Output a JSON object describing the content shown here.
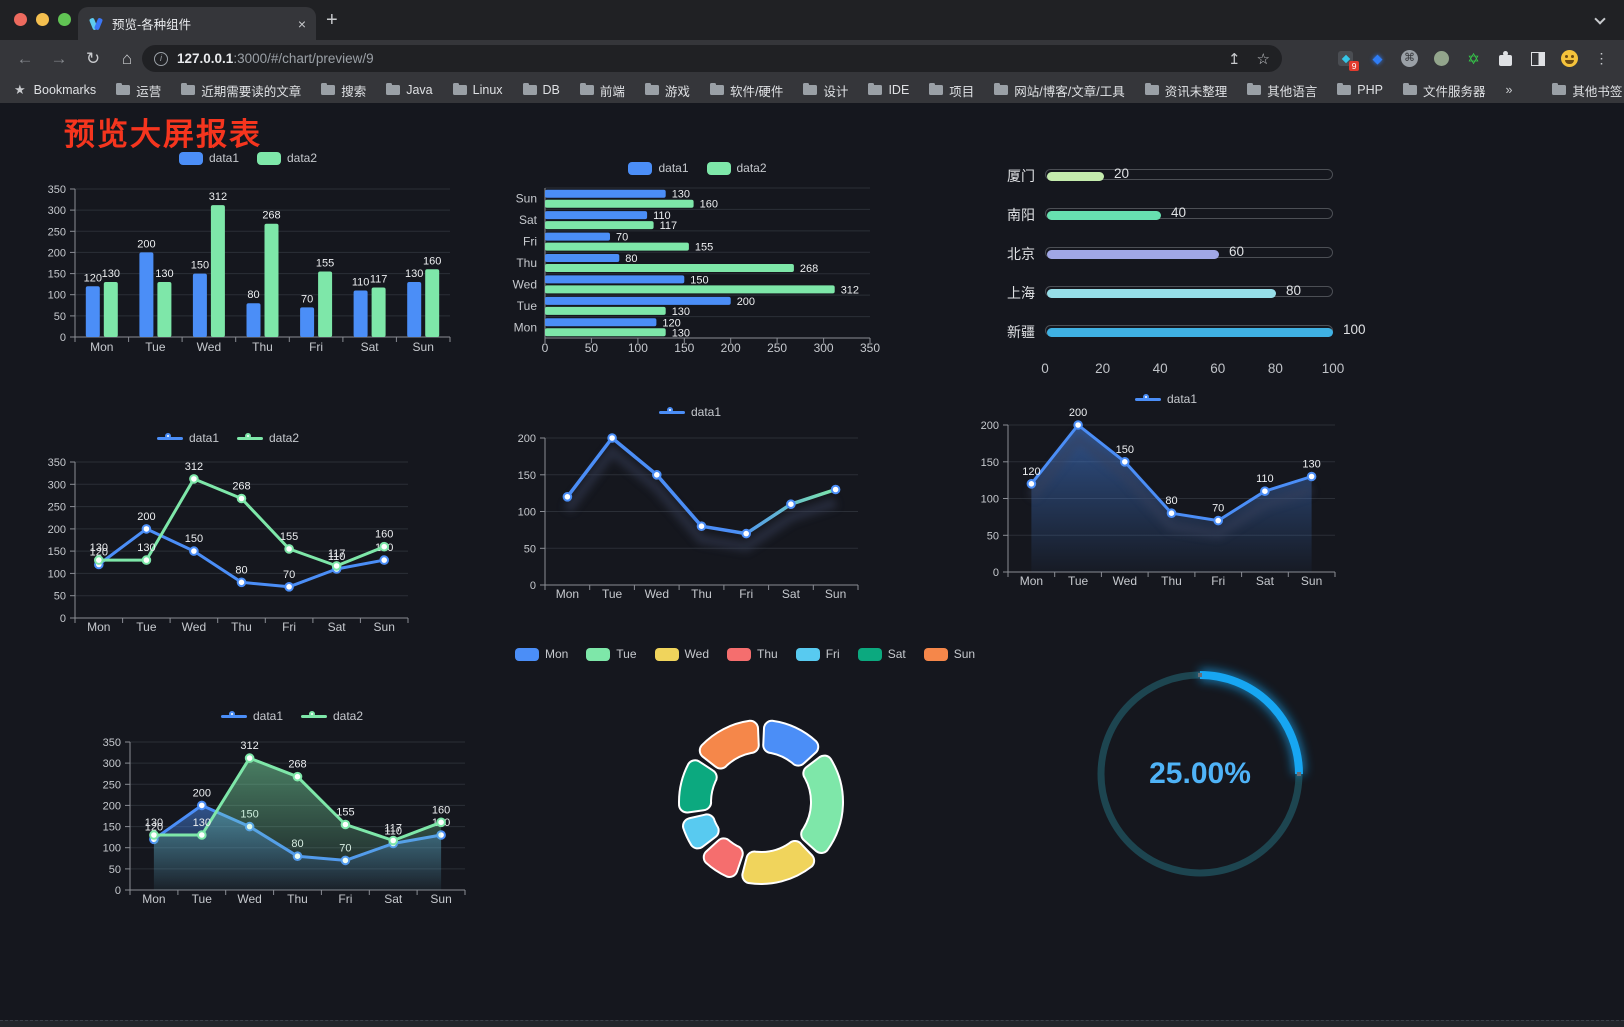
{
  "browser": {
    "tab_title": "预览-各种组件",
    "url_host": "127.0.0.1",
    "url_rest": ":3000/#/chart/preview/9",
    "ext_badge": "9",
    "bookmarks_caption": "Bookmarks",
    "bookmarks": [
      "运营",
      "近期需要读的文章",
      "搜索",
      "Java",
      "Linux",
      "DB",
      "前端",
      "游戏",
      "软件/硬件",
      "设计",
      "IDE",
      "项目",
      "网站/博客/文章/工具",
      "资讯未整理",
      "其他语言",
      "PHP",
      "文件服务器"
    ],
    "bookmarks_overflow": "»",
    "other_bookmarks": "其他书签"
  },
  "icons": {
    "close": "×",
    "new_tab": "+",
    "back": "←",
    "forward": "→",
    "reload": "↻",
    "home": "⌂",
    "info": "i",
    "share": "↥",
    "url_star": "☆",
    "bookmark_star": "★",
    "kebab": "⋮",
    "cmd": "⌘",
    "hex_star": "✡"
  },
  "page": {
    "title": "预览大屏报表"
  },
  "chart_data": [
    {
      "id": "grouped-bar",
      "type": "bar",
      "categories": [
        "Mon",
        "Tue",
        "Wed",
        "Thu",
        "Fri",
        "Sat",
        "Sun"
      ],
      "series": [
        {
          "name": "data1",
          "color": "#4b8ef7",
          "values": [
            120,
            200,
            150,
            80,
            70,
            110,
            130
          ]
        },
        {
          "name": "data2",
          "color": "#7ee7a9",
          "values": [
            130,
            130,
            312,
            268,
            155,
            117,
            160
          ]
        }
      ],
      "ylim": [
        0,
        350
      ],
      "ytick_step": 50,
      "value_labels": true,
      "legend": "rect"
    },
    {
      "id": "horizontal-bar",
      "type": "barh",
      "categories": [
        "Mon",
        "Tue",
        "Wed",
        "Thu",
        "Fri",
        "Sat",
        "Sun"
      ],
      "series": [
        {
          "name": "data1",
          "color": "#4b8ef7",
          "values": [
            120,
            200,
            150,
            80,
            70,
            110,
            130
          ]
        },
        {
          "name": "data2",
          "color": "#7ee7a9",
          "values": [
            130,
            130,
            312,
            268,
            155,
            117,
            160
          ]
        }
      ],
      "xlim": [
        0,
        350
      ],
      "xtick_step": 50,
      "value_labels": true,
      "legend": "rect"
    },
    {
      "id": "progress-bars",
      "type": "progress",
      "items": [
        {
          "label": "厦门",
          "value": 20,
          "color": "#c4ebad"
        },
        {
          "label": "南阳",
          "value": 40,
          "color": "#67e0b0"
        },
        {
          "label": "北京",
          "value": 60,
          "color": "#a0a7e6"
        },
        {
          "label": "上海",
          "value": 80,
          "color": "#96dee8"
        },
        {
          "label": "新疆",
          "value": 100,
          "color": "#3fb1e3"
        }
      ],
      "xlim": [
        0,
        100
      ],
      "xticks": [
        0,
        20,
        40,
        60,
        80,
        100
      ]
    },
    {
      "id": "line-two-series",
      "type": "line",
      "categories": [
        "Mon",
        "Tue",
        "Wed",
        "Thu",
        "Fri",
        "Sat",
        "Sun"
      ],
      "series": [
        {
          "name": "data1",
          "color": "#4b8ef7",
          "values": [
            120,
            200,
            150,
            80,
            70,
            110,
            130
          ]
        },
        {
          "name": "data2",
          "color": "#7ee7a9",
          "values": [
            130,
            130,
            312,
            268,
            155,
            117,
            160
          ]
        }
      ],
      "ylim": [
        0,
        350
      ],
      "ytick_step": 50,
      "value_labels": true,
      "legend": "linedot"
    },
    {
      "id": "line-gradient",
      "type": "line",
      "categories": [
        "Mon",
        "Tue",
        "Wed",
        "Thu",
        "Fri",
        "Sat",
        "Sun"
      ],
      "series": [
        {
          "name": "data1",
          "color": "#4b8ef7",
          "gradient": [
            "#4b8ef7",
            "#7ee7a9"
          ],
          "values": [
            120,
            200,
            150,
            80,
            70,
            110,
            130
          ]
        }
      ],
      "ylim": [
        0,
        200
      ],
      "ytick_step": 50,
      "value_labels": false,
      "shadow": true,
      "legend": "linedot"
    },
    {
      "id": "area-single",
      "type": "line",
      "categories": [
        "Mon",
        "Tue",
        "Wed",
        "Thu",
        "Fri",
        "Sat",
        "Sun"
      ],
      "series": [
        {
          "name": "data1",
          "color": "#4b8ef7",
          "area": true,
          "values": [
            120,
            200,
            150,
            80,
            70,
            110,
            130
          ]
        }
      ],
      "ylim": [
        0,
        200
      ],
      "ytick_step": 50,
      "value_labels": true,
      "shadow": true,
      "legend": "linedot"
    },
    {
      "id": "area-two-series",
      "type": "line",
      "categories": [
        "Mon",
        "Tue",
        "Wed",
        "Thu",
        "Fri",
        "Sat",
        "Sun"
      ],
      "series": [
        {
          "name": "data1",
          "color": "#4b8ef7",
          "area": true,
          "values": [
            120,
            200,
            150,
            80,
            70,
            110,
            130
          ]
        },
        {
          "name": "data2",
          "color": "#7ee7a9",
          "area": true,
          "values": [
            130,
            130,
            312,
            268,
            155,
            117,
            160
          ]
        }
      ],
      "ylim": [
        0,
        350
      ],
      "ytick_step": 50,
      "value_labels": true,
      "legend": "linedot"
    },
    {
      "id": "donut",
      "type": "pie",
      "items": [
        {
          "label": "Mon",
          "value": 120,
          "color": "#4b8ef7"
        },
        {
          "label": "Tue",
          "value": 200,
          "color": "#7ee7a9"
        },
        {
          "label": "Wed",
          "value": 150,
          "color": "#f0d45c"
        },
        {
          "label": "Thu",
          "value": 80,
          "color": "#f56e6e"
        },
        {
          "label": "Fri",
          "value": 70,
          "color": "#58caf0"
        },
        {
          "label": "Sat",
          "value": 110,
          "color": "#0ca97f"
        },
        {
          "label": "Sun",
          "value": 130,
          "color": "#f5874a"
        }
      ],
      "legend": "rect"
    },
    {
      "id": "gauge",
      "type": "gauge",
      "value": 25,
      "label": "25.00%",
      "color": "#17a6f2",
      "track_color": "#1d4550"
    }
  ]
}
